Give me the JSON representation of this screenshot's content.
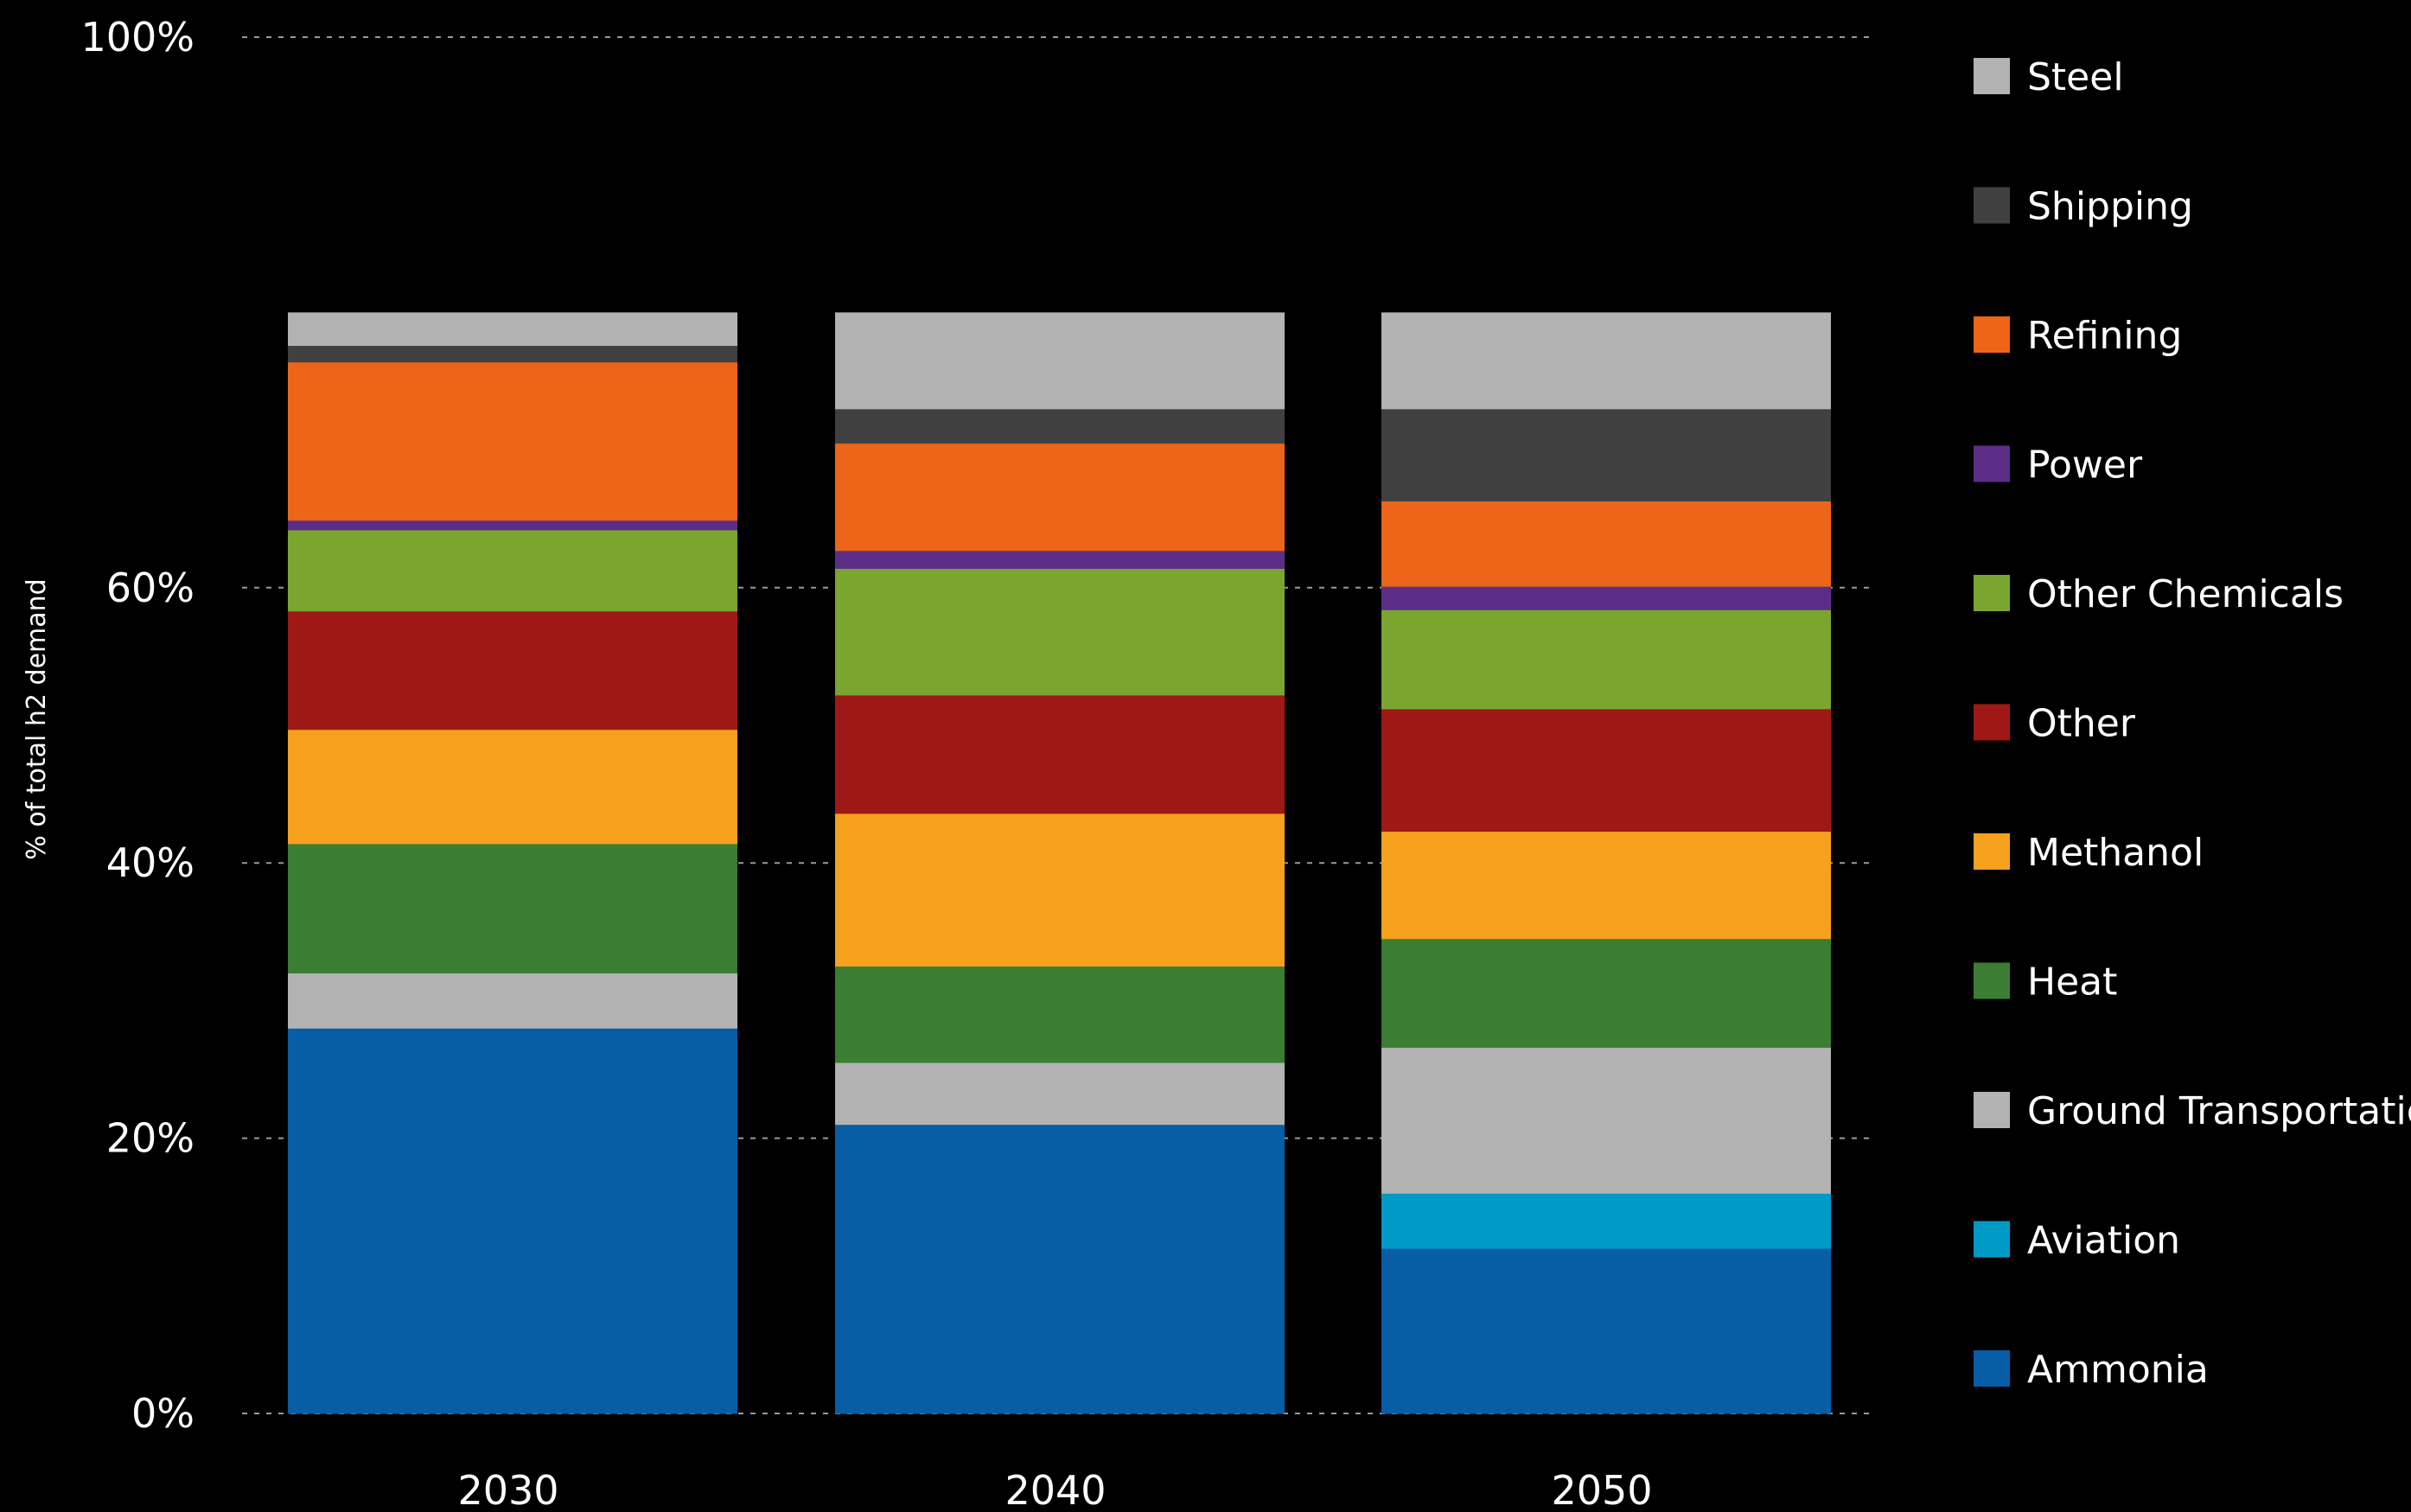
{
  "chart_data": {
    "type": "bar",
    "stacked": true,
    "title": "",
    "xlabel": "",
    "ylabel": "% of total h2 demand",
    "ylim": [
      0,
      100
    ],
    "yticks": [
      0,
      20,
      40,
      60,
      100
    ],
    "ytick_labels": [
      "0%",
      "20%",
      "40%",
      "60%",
      "100%"
    ],
    "grid": "horizontal dashed",
    "legend_position": "right",
    "categories": [
      "2030",
      "2040",
      "2050"
    ],
    "series": [
      {
        "name": "Ammonia",
        "color": "#075ea6",
        "values": [
          28,
          21,
          12
        ]
      },
      {
        "name": "Aviation",
        "color": "#009ac7",
        "values": [
          0,
          0,
          4
        ]
      },
      {
        "name": "Ground Transportation",
        "color": "#b3b3b3",
        "values": [
          4,
          4.5,
          10.6
        ]
      },
      {
        "name": "Heat",
        "color": "#3a7d33",
        "values": [
          9.4,
          7,
          7.9
        ]
      },
      {
        "name": "Methanol",
        "color": "#f5a11d",
        "values": [
          8.3,
          11.1,
          7.8
        ]
      },
      {
        "name": "Other",
        "color": "#9e1916",
        "values": [
          8.6,
          8.6,
          8.9
        ]
      },
      {
        "name": "Other Chemicals",
        "color": "#7aa52f",
        "values": [
          5.9,
          9.2,
          7.2
        ]
      },
      {
        "name": "Power",
        "color": "#5c2d87",
        "values": [
          0.7,
          1.3,
          1.7
        ]
      },
      {
        "name": "Refining",
        "color": "#ec6519",
        "values": [
          11.5,
          7.8,
          6.2
        ]
      },
      {
        "name": "Shipping",
        "color": "#404040",
        "values": [
          1.2,
          2.5,
          6.7
        ]
      },
      {
        "name": "Steel",
        "color": "#b3b3b3",
        "values": [
          2.4,
          7,
          7
        ]
      }
    ]
  }
}
